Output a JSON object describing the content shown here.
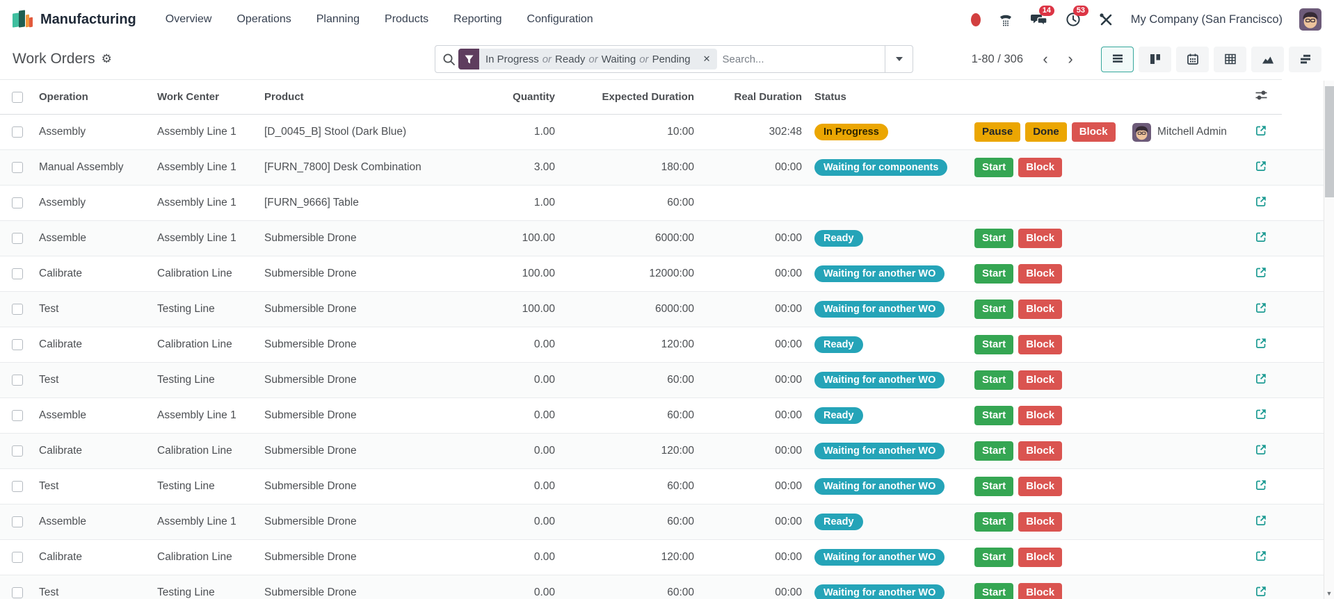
{
  "colors": {
    "accent": "#35a79c",
    "warning": "#eba602",
    "info": "#25a4b8",
    "success": "#35a653",
    "danger": "#da5450",
    "facet_icon_bg": "#5e3d5e",
    "counter_badge": "#dc3545",
    "link_teal": "#1d9b93"
  },
  "topbar": {
    "brand": "Manufacturing",
    "menus": [
      "Overview",
      "Operations",
      "Planning",
      "Products",
      "Reporting",
      "Configuration"
    ],
    "systray": {
      "messages_count": "14",
      "activities_count": "53",
      "company": "My Company (San Francisco)",
      "icons": [
        "recording-dot",
        "phone",
        "messages",
        "activities",
        "developer-tools",
        "avatar"
      ]
    }
  },
  "control": {
    "title": "Work Orders",
    "gear_icon": "gear",
    "search": {
      "facet_values": [
        "In Progress",
        "Ready",
        "Waiting",
        "Pending"
      ],
      "facet_separator": "or",
      "placeholder": "Search..."
    },
    "pager": {
      "text": "1-80 / 306"
    },
    "views": [
      "list",
      "kanban",
      "calendar",
      "pivot",
      "graph",
      "gantt"
    ],
    "active_view": "list"
  },
  "table": {
    "headers": [
      "Operation",
      "Work Center",
      "Product",
      "Quantity",
      "Expected Duration",
      "Real Duration",
      "Status"
    ],
    "rows": [
      {
        "operation": "Assembly",
        "work_center": "Assembly Line 1",
        "product": "[D_0045_B] Stool (Dark Blue)",
        "quantity": "1.00",
        "expected": "10:00",
        "real": "302:48",
        "status": {
          "label": "In Progress",
          "type": "warning"
        },
        "buttons": [
          {
            "label": "Pause",
            "type": "warning"
          },
          {
            "label": "Done",
            "type": "warning"
          },
          {
            "label": "Block",
            "type": "danger"
          }
        ],
        "user": "Mitchell Admin"
      },
      {
        "operation": "Manual Assembly",
        "work_center": "Assembly Line 1",
        "product": "[FURN_7800] Desk Combination",
        "quantity": "3.00",
        "expected": "180:00",
        "real": "00:00",
        "status": {
          "label": "Waiting for components",
          "type": "info"
        },
        "buttons": [
          {
            "label": "Start",
            "type": "success"
          },
          {
            "label": "Block",
            "type": "danger"
          }
        ],
        "user": null
      },
      {
        "operation": "Assembly",
        "work_center": "Assembly Line 1",
        "product": "[FURN_9666] Table",
        "quantity": "1.00",
        "expected": "60:00",
        "real": "",
        "status": null,
        "buttons": [],
        "user": null
      },
      {
        "operation": "Assemble",
        "work_center": "Assembly Line 1",
        "product": "Submersible Drone",
        "quantity": "100.00",
        "expected": "6000:00",
        "real": "00:00",
        "status": {
          "label": "Ready",
          "type": "info"
        },
        "buttons": [
          {
            "label": "Start",
            "type": "success"
          },
          {
            "label": "Block",
            "type": "danger"
          }
        ],
        "user": null
      },
      {
        "operation": "Calibrate",
        "work_center": "Calibration Line",
        "product": "Submersible Drone",
        "quantity": "100.00",
        "expected": "12000:00",
        "real": "00:00",
        "status": {
          "label": "Waiting for another WO",
          "type": "info"
        },
        "buttons": [
          {
            "label": "Start",
            "type": "success"
          },
          {
            "label": "Block",
            "type": "danger"
          }
        ],
        "user": null
      },
      {
        "operation": "Test",
        "work_center": "Testing Line",
        "product": "Submersible Drone",
        "quantity": "100.00",
        "expected": "6000:00",
        "real": "00:00",
        "status": {
          "label": "Waiting for another WO",
          "type": "info"
        },
        "buttons": [
          {
            "label": "Start",
            "type": "success"
          },
          {
            "label": "Block",
            "type": "danger"
          }
        ],
        "user": null
      },
      {
        "operation": "Calibrate",
        "work_center": "Calibration Line",
        "product": "Submersible Drone",
        "quantity": "0.00",
        "expected": "120:00",
        "real": "00:00",
        "status": {
          "label": "Ready",
          "type": "info"
        },
        "buttons": [
          {
            "label": "Start",
            "type": "success"
          },
          {
            "label": "Block",
            "type": "danger"
          }
        ],
        "user": null
      },
      {
        "operation": "Test",
        "work_center": "Testing Line",
        "product": "Submersible Drone",
        "quantity": "0.00",
        "expected": "60:00",
        "real": "00:00",
        "status": {
          "label": "Waiting for another WO",
          "type": "info"
        },
        "buttons": [
          {
            "label": "Start",
            "type": "success"
          },
          {
            "label": "Block",
            "type": "danger"
          }
        ],
        "user": null
      },
      {
        "operation": "Assemble",
        "work_center": "Assembly Line 1",
        "product": "Submersible Drone",
        "quantity": "0.00",
        "expected": "60:00",
        "real": "00:00",
        "status": {
          "label": "Ready",
          "type": "info"
        },
        "buttons": [
          {
            "label": "Start",
            "type": "success"
          },
          {
            "label": "Block",
            "type": "danger"
          }
        ],
        "user": null
      },
      {
        "operation": "Calibrate",
        "work_center": "Calibration Line",
        "product": "Submersible Drone",
        "quantity": "0.00",
        "expected": "120:00",
        "real": "00:00",
        "status": {
          "label": "Waiting for another WO",
          "type": "info"
        },
        "buttons": [
          {
            "label": "Start",
            "type": "success"
          },
          {
            "label": "Block",
            "type": "danger"
          }
        ],
        "user": null
      },
      {
        "operation": "Test",
        "work_center": "Testing Line",
        "product": "Submersible Drone",
        "quantity": "0.00",
        "expected": "60:00",
        "real": "00:00",
        "status": {
          "label": "Waiting for another WO",
          "type": "info"
        },
        "buttons": [
          {
            "label": "Start",
            "type": "success"
          },
          {
            "label": "Block",
            "type": "danger"
          }
        ],
        "user": null
      },
      {
        "operation": "Assemble",
        "work_center": "Assembly Line 1",
        "product": "Submersible Drone",
        "quantity": "0.00",
        "expected": "60:00",
        "real": "00:00",
        "status": {
          "label": "Ready",
          "type": "info"
        },
        "buttons": [
          {
            "label": "Start",
            "type": "success"
          },
          {
            "label": "Block",
            "type": "danger"
          }
        ],
        "user": null
      },
      {
        "operation": "Calibrate",
        "work_center": "Calibration Line",
        "product": "Submersible Drone",
        "quantity": "0.00",
        "expected": "120:00",
        "real": "00:00",
        "status": {
          "label": "Waiting for another WO",
          "type": "info"
        },
        "buttons": [
          {
            "label": "Start",
            "type": "success"
          },
          {
            "label": "Block",
            "type": "danger"
          }
        ],
        "user": null
      },
      {
        "operation": "Test",
        "work_center": "Testing Line",
        "product": "Submersible Drone",
        "quantity": "0.00",
        "expected": "60:00",
        "real": "00:00",
        "status": {
          "label": "Waiting for another WO",
          "type": "info"
        },
        "buttons": [
          {
            "label": "Start",
            "type": "success"
          },
          {
            "label": "Block",
            "type": "danger"
          }
        ],
        "user": null
      }
    ]
  }
}
